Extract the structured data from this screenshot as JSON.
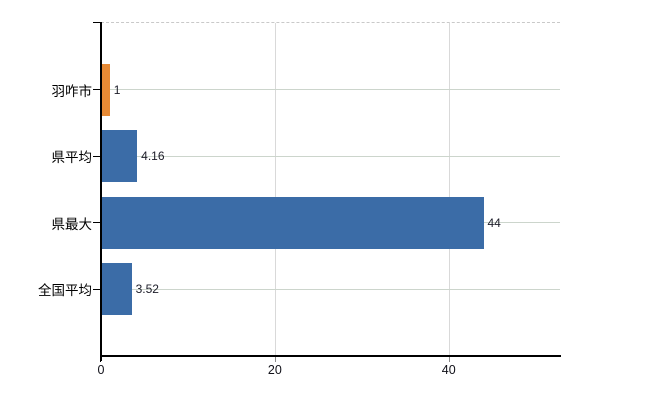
{
  "chart_data": {
    "type": "bar",
    "orientation": "horizontal",
    "title": "",
    "xlabel": "",
    "ylabel": "",
    "categories": [
      "羽咋市",
      "県平均",
      "県最大",
      "全国平均"
    ],
    "values": [
      1,
      4.16,
      44,
      3.52
    ],
    "value_labels": [
      "1",
      "4.16",
      "44",
      "3.52"
    ],
    "bar_colors": [
      "#e78a35",
      "#3b6ca7",
      "#3b6ca7",
      "#3b6ca7"
    ],
    "highlight_color": "#e78a35",
    "default_bar_color": "#3b6ca7",
    "x_ticks": [
      {
        "label": "0",
        "value": 0
      },
      {
        "label": "20",
        "value": 20
      },
      {
        "label": "40",
        "value": 40
      }
    ],
    "xlim": [
      0,
      52.8
    ],
    "grid": "on",
    "legend": "none",
    "grid_color_horizontal": "#ccd5cc",
    "grid_color_vertical": "#d9d9d9",
    "axis_color": "#000000"
  }
}
